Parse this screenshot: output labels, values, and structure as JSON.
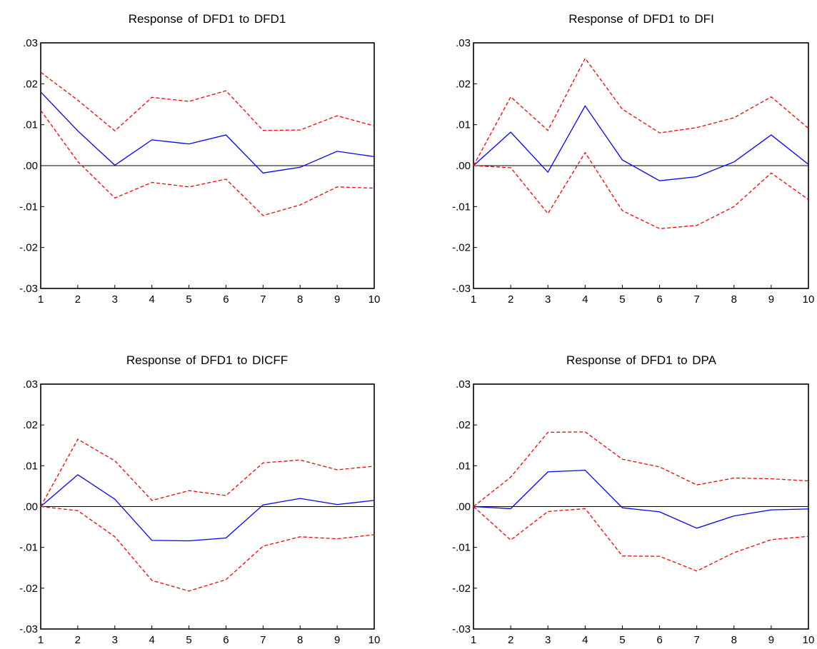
{
  "chart_data": [
    {
      "type": "line",
      "title": "Response of DFD1 to DFD1",
      "x": [
        1,
        2,
        3,
        4,
        5,
        6,
        7,
        8,
        9,
        10
      ],
      "ylim": [
        -0.03,
        0.03
      ],
      "xlim": [
        1,
        10
      ],
      "yticks": [
        ".03",
        ".02",
        ".01",
        ".00",
        "-.01",
        "-.02",
        "-.03"
      ],
      "xticks": [
        "1",
        "2",
        "3",
        "4",
        "5",
        "6",
        "7",
        "8",
        "9",
        "10"
      ],
      "series": [
        {
          "role": "response",
          "color": "#0000ff",
          "style": "solid",
          "values": [
            0.018,
            0.0085,
            0.0001,
            0.0063,
            0.0053,
            0.0075,
            -0.0018,
            -0.0004,
            0.0035,
            0.0022
          ]
        },
        {
          "role": "upper",
          "color": "#ff0000",
          "style": "dashed",
          "values": [
            0.0228,
            0.016,
            0.0085,
            0.0167,
            0.0157,
            0.0183,
            0.0086,
            0.0087,
            0.0122,
            0.0097
          ]
        },
        {
          "role": "lower",
          "color": "#ff0000",
          "style": "dashed",
          "values": [
            0.0135,
            0.001,
            -0.0079,
            -0.0041,
            -0.0052,
            -0.0033,
            -0.0122,
            -0.0096,
            -0.0052,
            -0.0055
          ]
        }
      ]
    },
    {
      "type": "line",
      "title": "Response of DFD1 to DFI",
      "x": [
        1,
        2,
        3,
        4,
        5,
        6,
        7,
        8,
        9,
        10
      ],
      "ylim": [
        -0.03,
        0.03
      ],
      "xlim": [
        1,
        10
      ],
      "yticks": [
        ".03",
        ".02",
        ".01",
        ".00",
        "-.01",
        "-.02",
        "-.03"
      ],
      "xticks": [
        "1",
        "2",
        "3",
        "4",
        "5",
        "6",
        "7",
        "8",
        "9",
        "10"
      ],
      "series": [
        {
          "role": "response",
          "color": "#0000ff",
          "style": "solid",
          "values": [
            0.0,
            0.0082,
            -0.0016,
            0.0146,
            0.0014,
            -0.0037,
            -0.0027,
            0.0009,
            0.0075,
            0.0003
          ]
        },
        {
          "role": "upper",
          "color": "#ff0000",
          "style": "dashed",
          "values": [
            0.0,
            0.0168,
            0.0086,
            0.0262,
            0.0138,
            0.008,
            0.0093,
            0.0117,
            0.0168,
            0.0091
          ]
        },
        {
          "role": "lower",
          "color": "#ff0000",
          "style": "dashed",
          "values": [
            0.0,
            -0.0005,
            -0.0117,
            0.0032,
            -0.011,
            -0.0154,
            -0.0146,
            -0.01,
            -0.0018,
            -0.0083
          ]
        }
      ]
    },
    {
      "type": "line",
      "title": "Response of DFD1 to DICFF",
      "x": [
        1,
        2,
        3,
        4,
        5,
        6,
        7,
        8,
        9,
        10
      ],
      "ylim": [
        -0.03,
        0.03
      ],
      "xlim": [
        1,
        10
      ],
      "yticks": [
        ".03",
        ".02",
        ".01",
        ".00",
        "-.01",
        "-.02",
        "-.03"
      ],
      "xticks": [
        "1",
        "2",
        "3",
        "4",
        "5",
        "6",
        "7",
        "8",
        "9",
        "10"
      ],
      "series": [
        {
          "role": "response",
          "color": "#0000ff",
          "style": "solid",
          "values": [
            0.0,
            0.0078,
            0.0018,
            -0.0083,
            -0.0084,
            -0.0077,
            0.0004,
            0.002,
            0.0005,
            0.0015
          ]
        },
        {
          "role": "upper",
          "color": "#ff0000",
          "style": "dashed",
          "values": [
            0.0,
            0.0165,
            0.0112,
            0.0015,
            0.0039,
            0.0027,
            0.0107,
            0.0114,
            0.009,
            0.0099
          ]
        },
        {
          "role": "lower",
          "color": "#ff0000",
          "style": "dashed",
          "values": [
            0.0,
            -0.001,
            -0.0074,
            -0.0181,
            -0.0207,
            -0.0179,
            -0.0097,
            -0.0074,
            -0.0079,
            -0.0069
          ]
        }
      ]
    },
    {
      "type": "line",
      "title": "Response of DFD1 to DPA",
      "x": [
        1,
        2,
        3,
        4,
        5,
        6,
        7,
        8,
        9,
        10
      ],
      "ylim": [
        -0.03,
        0.03
      ],
      "xlim": [
        1,
        10
      ],
      "yticks": [
        ".03",
        ".02",
        ".01",
        ".00",
        "-.01",
        "-.02",
        "-.03"
      ],
      "xticks": [
        "1",
        "2",
        "3",
        "4",
        "5",
        "6",
        "7",
        "8",
        "9",
        "10"
      ],
      "series": [
        {
          "role": "response",
          "color": "#0000ff",
          "style": "solid",
          "values": [
            0.0,
            -0.0005,
            0.0085,
            0.0089,
            -0.0003,
            -0.0013,
            -0.0053,
            -0.0023,
            -0.0008,
            -0.0006
          ]
        },
        {
          "role": "upper",
          "color": "#ff0000",
          "style": "dashed",
          "values": [
            0.0,
            0.0072,
            0.0182,
            0.0183,
            0.0116,
            0.0097,
            0.0053,
            0.007,
            0.0068,
            0.0063
          ]
        },
        {
          "role": "lower",
          "color": "#ff0000",
          "style": "dashed",
          "values": [
            0.0,
            -0.0082,
            -0.0012,
            -0.0005,
            -0.0121,
            -0.0122,
            -0.0158,
            -0.0113,
            -0.0081,
            -0.0073
          ]
        }
      ]
    }
  ]
}
